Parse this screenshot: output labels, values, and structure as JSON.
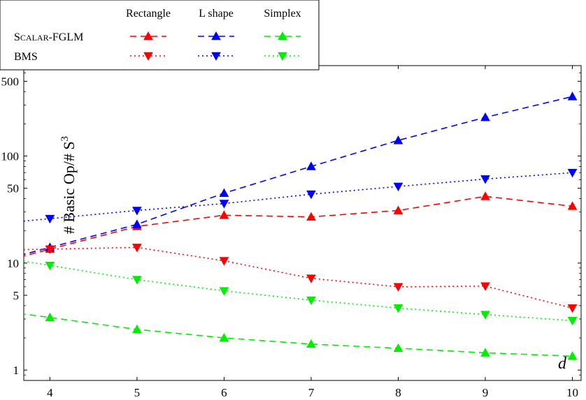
{
  "chart_data": {
    "type": "line",
    "title": "",
    "xlabel": "d",
    "ylabel": "# Basic Op/# S",
    "ylabel_sup": "3",
    "yscale": "log",
    "xlim": [
      3.7,
      10.1
    ],
    "ylim": [
      0.8,
      700
    ],
    "x_ticks": [
      4,
      5,
      6,
      7,
      8,
      9,
      10
    ],
    "y_ticks": [
      1,
      5,
      10,
      50,
      100,
      500
    ],
    "legend": {
      "placement": "top-left",
      "columns": [
        "Rectangle",
        "L shape",
        "Simplex"
      ],
      "rows": [
        "Scalar-FGLM",
        "BMS"
      ]
    },
    "series": [
      {
        "algorithm": "Scalar-FGLM",
        "shape": "Rectangle",
        "color": "#ff0000",
        "dash": "dashed",
        "marker": "triangle-up",
        "x": [
          4,
          5,
          6,
          7,
          8,
          9,
          10
        ],
        "y": [
          13.5,
          22,
          28,
          27,
          31,
          42,
          34
        ]
      },
      {
        "algorithm": "Scalar-FGLM",
        "shape": "L shape",
        "color": "#0000ff",
        "dash": "dashed",
        "marker": "triangle-up",
        "x": [
          4,
          5,
          6,
          7,
          8,
          9,
          10
        ],
        "y": [
          14,
          23,
          45,
          80,
          140,
          230,
          360
        ]
      },
      {
        "algorithm": "Scalar-FGLM",
        "shape": "Simplex",
        "color": "#00ee00",
        "dash": "dashed",
        "marker": "triangle-up",
        "x": [
          4,
          5,
          6,
          7,
          8,
          9,
          10
        ],
        "y": [
          3.1,
          2.4,
          2.0,
          1.75,
          1.6,
          1.45,
          1.35
        ]
      },
      {
        "algorithm": "BMS",
        "shape": "Rectangle",
        "color": "#ff0000",
        "dash": "dotted",
        "marker": "triangle-down",
        "x": [
          4,
          5,
          6,
          7,
          8,
          9,
          10
        ],
        "y": [
          13.5,
          14,
          10.5,
          7.2,
          6.0,
          6.1,
          3.8
        ]
      },
      {
        "algorithm": "BMS",
        "shape": "L shape",
        "color": "#0000ff",
        "dash": "dotted",
        "marker": "triangle-down",
        "x": [
          4,
          5,
          6,
          7,
          8,
          9,
          10
        ],
        "y": [
          26,
          31,
          36,
          44,
          52,
          61,
          70
        ]
      },
      {
        "algorithm": "BMS",
        "shape": "Simplex",
        "color": "#00ee00",
        "dash": "dotted",
        "marker": "triangle-down",
        "x": [
          4,
          5,
          6,
          7,
          8,
          9,
          10
        ],
        "y": [
          9.5,
          7.0,
          5.5,
          4.5,
          3.8,
          3.3,
          2.9
        ]
      }
    ]
  }
}
